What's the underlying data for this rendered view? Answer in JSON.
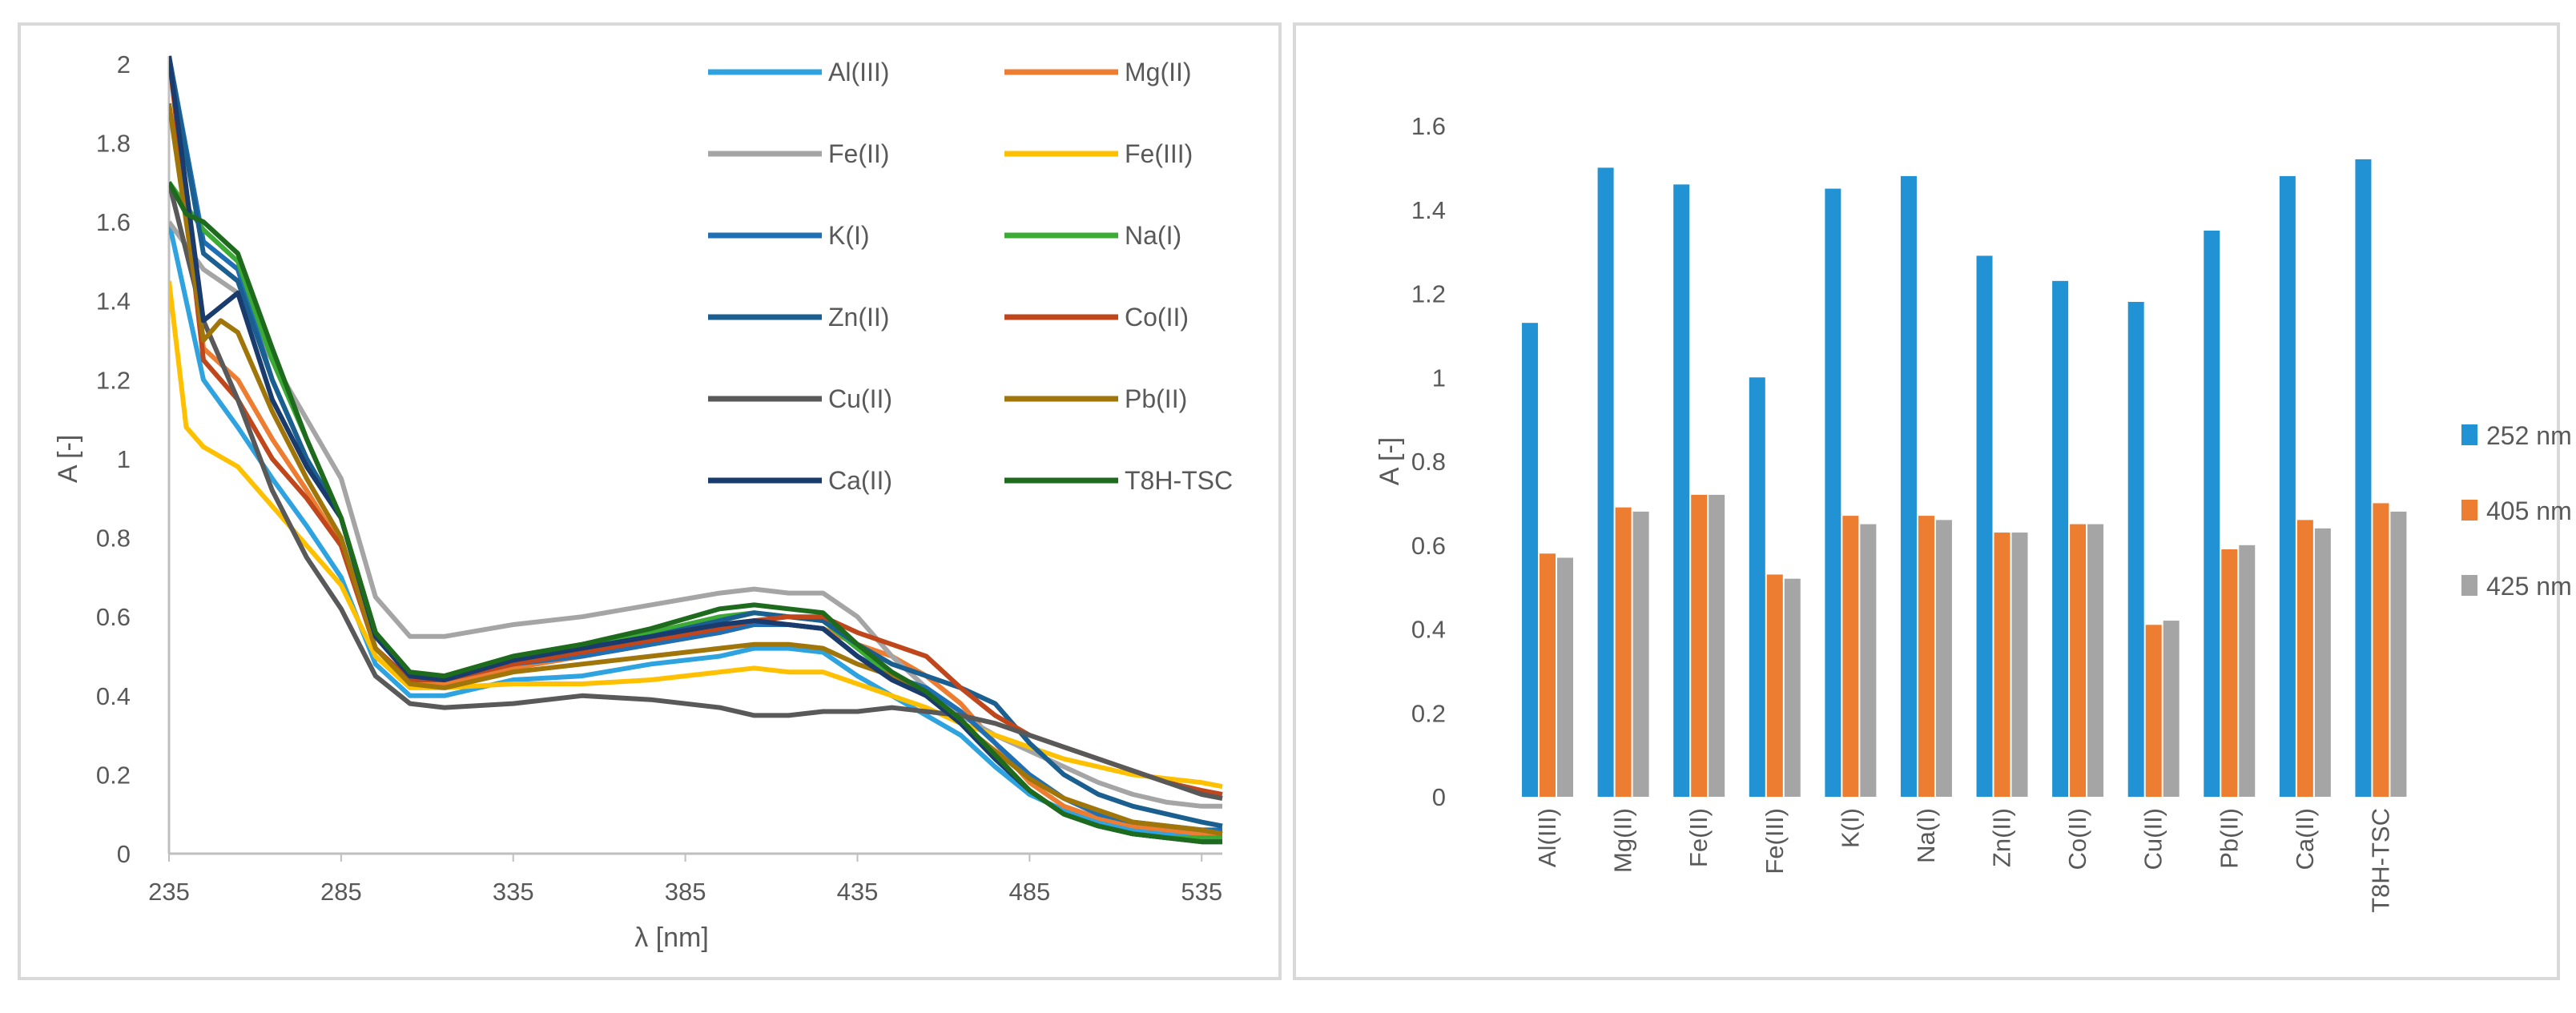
{
  "chart_data": [
    {
      "type": "line",
      "title": "",
      "xlabel": "λ [nm]",
      "ylabel": "A [-]",
      "xlim": [
        235,
        541
      ],
      "ylim": [
        0,
        2.02
      ],
      "x_ticks": [
        "235",
        "285",
        "335",
        "385",
        "435",
        "485",
        "535"
      ],
      "y_ticks": [
        "0",
        "0.2",
        "0.4",
        "0.6",
        "0.8",
        "1",
        "1.2",
        "1.4",
        "1.6",
        "1.8",
        "2"
      ],
      "x_tick_values": [
        235,
        285,
        335,
        385,
        435,
        485,
        535
      ],
      "y_tick_values": [
        0,
        0.2,
        0.4,
        0.6,
        0.8,
        1.0,
        1.2,
        1.4,
        1.6,
        1.8,
        2.0
      ],
      "series": [
        {
          "name": "Al(III)",
          "color": "#2ea3e0",
          "x": [
            235,
            245,
            255,
            265,
            275,
            285,
            295,
            305,
            315,
            335,
            355,
            375,
            395,
            405,
            415,
            425,
            435,
            445,
            455,
            465,
            475,
            485,
            495,
            505,
            515,
            525,
            535,
            541
          ],
          "y": [
            1.6,
            1.2,
            1.08,
            0.95,
            0.83,
            0.7,
            0.48,
            0.4,
            0.4,
            0.44,
            0.45,
            0.48,
            0.5,
            0.52,
            0.52,
            0.51,
            0.45,
            0.4,
            0.35,
            0.3,
            0.22,
            0.15,
            0.11,
            0.08,
            0.06,
            0.05,
            0.04,
            0.04
          ]
        },
        {
          "name": "Mg(II)",
          "color": "#ed7d31",
          "x": [
            235,
            245,
            255,
            265,
            275,
            285,
            295,
            305,
            315,
            335,
            355,
            375,
            395,
            405,
            415,
            425,
            435,
            445,
            455,
            465,
            475,
            485,
            495,
            505,
            515,
            525,
            535,
            541
          ],
          "y": [
            2.02,
            1.28,
            1.2,
            1.05,
            0.92,
            0.78,
            0.52,
            0.44,
            0.43,
            0.47,
            0.5,
            0.53,
            0.56,
            0.58,
            0.58,
            0.57,
            0.53,
            0.5,
            0.45,
            0.38,
            0.28,
            0.18,
            0.12,
            0.09,
            0.07,
            0.06,
            0.05,
            0.05
          ]
        },
        {
          "name": "Fe(II)",
          "color": "#a5a5a5",
          "x": [
            235,
            245,
            255,
            265,
            275,
            285,
            295,
            305,
            315,
            335,
            355,
            375,
            395,
            405,
            415,
            425,
            435,
            445,
            455,
            465,
            475,
            485,
            495,
            505,
            515,
            525,
            535,
            541
          ],
          "y": [
            1.6,
            1.48,
            1.42,
            1.25,
            1.1,
            0.95,
            0.65,
            0.55,
            0.55,
            0.58,
            0.6,
            0.63,
            0.66,
            0.67,
            0.66,
            0.66,
            0.6,
            0.5,
            0.42,
            0.35,
            0.3,
            0.26,
            0.22,
            0.18,
            0.15,
            0.13,
            0.12,
            0.12
          ]
        },
        {
          "name": "Fe(III)",
          "color": "#ffc000",
          "x": [
            235,
            240,
            245,
            255,
            265,
            275,
            285,
            295,
            305,
            315,
            335,
            355,
            375,
            395,
            405,
            415,
            425,
            435,
            445,
            455,
            465,
            475,
            485,
            495,
            505,
            515,
            525,
            535,
            541
          ],
          "y": [
            1.45,
            1.08,
            1.03,
            0.98,
            0.88,
            0.78,
            0.68,
            0.5,
            0.42,
            0.42,
            0.43,
            0.43,
            0.44,
            0.46,
            0.47,
            0.46,
            0.46,
            0.43,
            0.4,
            0.37,
            0.33,
            0.3,
            0.27,
            0.24,
            0.22,
            0.2,
            0.19,
            0.18,
            0.17
          ]
        },
        {
          "name": "K(I)",
          "color": "#1f6fb4",
          "x": [
            235,
            245,
            255,
            265,
            275,
            285,
            295,
            305,
            315,
            335,
            355,
            375,
            395,
            405,
            415,
            425,
            435,
            445,
            455,
            465,
            475,
            485,
            495,
            505,
            515,
            525,
            535,
            541
          ],
          "y": [
            2.02,
            1.55,
            1.48,
            1.2,
            1.0,
            0.85,
            0.55,
            0.45,
            0.44,
            0.48,
            0.5,
            0.53,
            0.56,
            0.58,
            0.58,
            0.57,
            0.5,
            0.45,
            0.42,
            0.36,
            0.28,
            0.2,
            0.14,
            0.1,
            0.08,
            0.07,
            0.06,
            0.06
          ]
        },
        {
          "name": "Na(I)",
          "color": "#3cab35",
          "x": [
            235,
            245,
            255,
            265,
            275,
            285,
            295,
            305,
            315,
            335,
            355,
            375,
            395,
            405,
            415,
            425,
            435,
            445,
            455,
            465,
            475,
            485,
            495,
            505,
            515,
            525,
            535,
            541
          ],
          "y": [
            1.7,
            1.58,
            1.5,
            1.25,
            1.05,
            0.85,
            0.56,
            0.45,
            0.45,
            0.5,
            0.53,
            0.56,
            0.6,
            0.61,
            0.6,
            0.59,
            0.52,
            0.45,
            0.4,
            0.33,
            0.24,
            0.16,
            0.1,
            0.07,
            0.05,
            0.04,
            0.04,
            0.04
          ]
        },
        {
          "name": "Zn(II)",
          "color": "#1a5f8f",
          "x": [
            235,
            245,
            255,
            265,
            275,
            285,
            295,
            305,
            315,
            335,
            355,
            375,
            395,
            405,
            415,
            425,
            435,
            445,
            455,
            465,
            475,
            485,
            495,
            505,
            515,
            525,
            535,
            541
          ],
          "y": [
            2.02,
            1.52,
            1.45,
            1.2,
            1.0,
            0.85,
            0.55,
            0.45,
            0.44,
            0.49,
            0.52,
            0.55,
            0.59,
            0.61,
            0.6,
            0.59,
            0.53,
            0.48,
            0.45,
            0.42,
            0.38,
            0.28,
            0.2,
            0.15,
            0.12,
            0.1,
            0.08,
            0.07
          ]
        },
        {
          "name": "Co(II)",
          "color": "#c0461c",
          "x": [
            235,
            245,
            255,
            265,
            275,
            285,
            295,
            305,
            315,
            335,
            355,
            375,
            395,
            405,
            415,
            425,
            435,
            445,
            455,
            465,
            475,
            485,
            495,
            505,
            515,
            525,
            535,
            541
          ],
          "y": [
            2.02,
            1.25,
            1.15,
            1.0,
            0.9,
            0.78,
            0.52,
            0.44,
            0.44,
            0.48,
            0.51,
            0.54,
            0.57,
            0.59,
            0.6,
            0.6,
            0.56,
            0.53,
            0.5,
            0.42,
            0.35,
            0.3,
            0.27,
            0.24,
            0.21,
            0.18,
            0.16,
            0.15
          ]
        },
        {
          "name": "Cu(II)",
          "color": "#595959",
          "x": [
            235,
            245,
            255,
            265,
            275,
            285,
            295,
            305,
            315,
            335,
            355,
            375,
            395,
            405,
            415,
            425,
            435,
            445,
            455,
            465,
            475,
            485,
            495,
            505,
            515,
            525,
            535,
            541
          ],
          "y": [
            1.7,
            1.35,
            1.15,
            0.92,
            0.75,
            0.62,
            0.45,
            0.38,
            0.37,
            0.38,
            0.4,
            0.39,
            0.37,
            0.35,
            0.35,
            0.36,
            0.36,
            0.37,
            0.36,
            0.35,
            0.33,
            0.3,
            0.27,
            0.24,
            0.21,
            0.18,
            0.15,
            0.14
          ]
        },
        {
          "name": "Pb(II)",
          "color": "#a0760a",
          "x": [
            235,
            245,
            250,
            255,
            265,
            275,
            285,
            295,
            305,
            315,
            335,
            355,
            375,
            395,
            405,
            415,
            425,
            435,
            445,
            455,
            465,
            475,
            485,
            495,
            505,
            515,
            525,
            535,
            541
          ],
          "y": [
            1.9,
            1.3,
            1.35,
            1.32,
            1.12,
            0.95,
            0.8,
            0.52,
            0.43,
            0.42,
            0.46,
            0.48,
            0.5,
            0.52,
            0.53,
            0.53,
            0.52,
            0.48,
            0.45,
            0.4,
            0.33,
            0.26,
            0.19,
            0.14,
            0.11,
            0.08,
            0.07,
            0.06,
            0.05
          ]
        },
        {
          "name": "Ca(II)",
          "color": "#193b6e",
          "x": [
            235,
            245,
            255,
            265,
            275,
            285,
            295,
            305,
            315,
            335,
            355,
            375,
            395,
            405,
            415,
            425,
            435,
            445,
            455,
            465,
            475,
            485,
            495,
            505,
            515,
            525,
            535,
            541
          ],
          "y": [
            2.02,
            1.35,
            1.42,
            1.15,
            0.98,
            0.85,
            0.55,
            0.45,
            0.44,
            0.49,
            0.52,
            0.55,
            0.58,
            0.59,
            0.58,
            0.57,
            0.5,
            0.44,
            0.4,
            0.33,
            0.24,
            0.16,
            0.1,
            0.07,
            0.05,
            0.04,
            0.03,
            0.03
          ]
        },
        {
          "name": "T8H-TSC",
          "color": "#1e6b1e",
          "x": [
            235,
            240,
            245,
            255,
            265,
            275,
            285,
            295,
            305,
            315,
            335,
            355,
            375,
            395,
            405,
            415,
            425,
            435,
            445,
            455,
            465,
            475,
            485,
            495,
            505,
            515,
            525,
            535,
            541
          ],
          "y": [
            1.7,
            1.62,
            1.6,
            1.52,
            1.28,
            1.05,
            0.85,
            0.56,
            0.46,
            0.45,
            0.5,
            0.53,
            0.57,
            0.62,
            0.63,
            0.62,
            0.61,
            0.53,
            0.46,
            0.41,
            0.34,
            0.25,
            0.16,
            0.1,
            0.07,
            0.05,
            0.04,
            0.03,
            0.03
          ]
        }
      ]
    },
    {
      "type": "bar",
      "title": "",
      "xlabel": "",
      "ylabel": "A [-]",
      "ylim": [
        0,
        1.6
      ],
      "y_ticks": [
        "0",
        "0.2",
        "0.4",
        "0.6",
        "0.8",
        "1",
        "1.2",
        "1.4",
        "1.6"
      ],
      "y_tick_values": [
        0,
        0.2,
        0.4,
        0.6,
        0.8,
        1.0,
        1.2,
        1.4,
        1.6
      ],
      "categories": [
        "Al(III)",
        "Mg(II)",
        "Fe(II)",
        "Fe(III)",
        "K(I)",
        "Na(I)",
        "Zn(II)",
        "Co(II)",
        "Cu(II)",
        "Pb(II)",
        "Ca(II)",
        "T8H-TSC"
      ],
      "series": [
        {
          "name": "252 nm",
          "color": "#2193d4",
          "values": [
            1.13,
            1.5,
            1.46,
            1.0,
            1.45,
            1.48,
            1.29,
            1.23,
            1.18,
            1.35,
            1.48,
            1.52
          ]
        },
        {
          "name": "405 nm",
          "color": "#ed7d31",
          "values": [
            0.58,
            0.69,
            0.72,
            0.53,
            0.67,
            0.67,
            0.63,
            0.65,
            0.41,
            0.59,
            0.66,
            0.7
          ]
        },
        {
          "name": "425 nm",
          "color": "#a5a5a5",
          "values": [
            0.57,
            0.68,
            0.72,
            0.52,
            0.65,
            0.66,
            0.63,
            0.65,
            0.42,
            0.6,
            0.64,
            0.68
          ]
        }
      ],
      "legend_position": "right"
    }
  ]
}
